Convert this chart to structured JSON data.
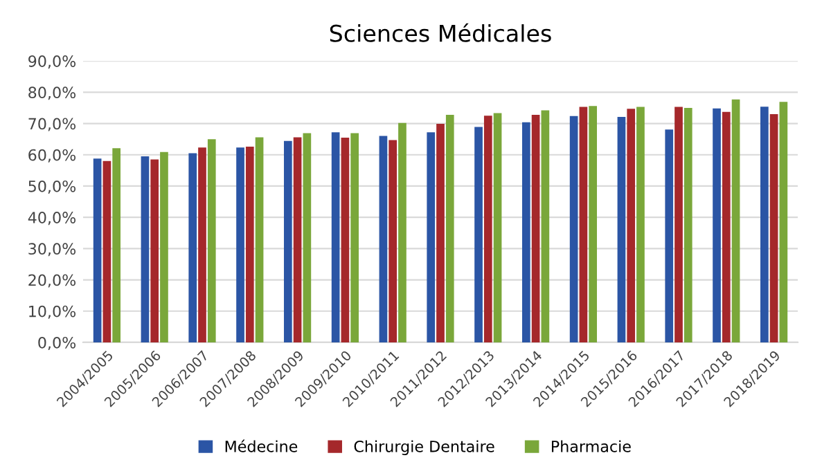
{
  "chart_data": {
    "type": "bar",
    "title": "Sciences Médicales",
    "categories": [
      "2004/2005",
      "2005/2006",
      "2006/2007",
      "2007/2008",
      "2008/2009",
      "2009/2010",
      "2010/2011",
      "2011/2012",
      "2012/2013",
      "2013/2014",
      "2014/2015",
      "2015/2016",
      "2016/2017",
      "2017/2018",
      "2018/2019"
    ],
    "series": [
      {
        "name": "Médecine",
        "color": "#2b55a5",
        "values": [
          58.8,
          59.5,
          60.5,
          62.3,
          64.4,
          67.2,
          66.0,
          67.2,
          68.9,
          70.4,
          72.4,
          72.1,
          68.1,
          74.8,
          75.4
        ]
      },
      {
        "name": "Chirurgie Dentaire",
        "color": "#a5282b",
        "values": [
          58.0,
          58.5,
          62.3,
          62.6,
          65.6,
          65.5,
          64.7,
          69.9,
          72.5,
          72.8,
          75.3,
          74.7,
          75.3,
          73.7,
          73.0
        ]
      },
      {
        "name": "Pharmacie",
        "color": "#7aa73a",
        "values": [
          62.1,
          60.9,
          65.0,
          65.6,
          66.9,
          66.9,
          70.2,
          72.8,
          73.3,
          74.2,
          75.6,
          75.3,
          75.0,
          77.7,
          76.9
        ]
      }
    ],
    "ylim": [
      0,
      90
    ],
    "yticks": [
      {
        "value": 0,
        "label": "0,0%"
      },
      {
        "value": 10,
        "label": "10,0%"
      },
      {
        "value": 20,
        "label": "20,0%"
      },
      {
        "value": 30,
        "label": "30,0%"
      },
      {
        "value": 40,
        "label": "40,0%"
      },
      {
        "value": 50,
        "label": "50,0%"
      },
      {
        "value": 60,
        "label": "60,0%"
      },
      {
        "value": 70,
        "label": "70,0%"
      },
      {
        "value": 80,
        "label": "80,0%"
      },
      {
        "value": 90,
        "label": "90,0%"
      }
    ],
    "grid": "y",
    "legend": "bottom"
  }
}
